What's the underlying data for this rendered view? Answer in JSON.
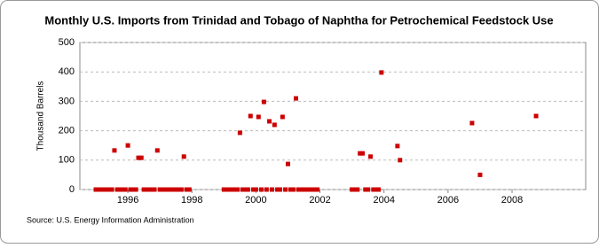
{
  "chart_data": {
    "type": "scatter",
    "title": "Monthly U.S. Imports from Trinidad and Tobago of Naphtha for Petrochemical Feedstock Use",
    "y_label": "Thousand Barrels",
    "source": "Source: U.S. Energy Information Administration",
    "color": "#cc0000",
    "grid": true,
    "xlim": [
      1994.5,
      2010.3
    ],
    "xticks": [
      1996,
      1998,
      2000,
      2002,
      2004,
      2006,
      2008
    ],
    "ylim": [
      0,
      500
    ],
    "yticks": [
      0,
      100,
      200,
      300,
      400,
      500
    ],
    "x": [
      1995.0,
      1995.08,
      1995.17,
      1995.25,
      1995.33,
      1995.42,
      1995.5,
      1995.58,
      1995.67,
      1995.75,
      1995.83,
      1995.92,
      1996.0,
      1996.08,
      1996.17,
      1996.25,
      1996.33,
      1996.42,
      1996.5,
      1996.58,
      1996.67,
      1996.75,
      1996.83,
      1996.92,
      1997.0,
      1997.08,
      1997.17,
      1997.25,
      1997.33,
      1997.42,
      1997.5,
      1997.58,
      1997.67,
      1997.75,
      1997.83,
      1997.92,
      1999.0,
      1999.08,
      1999.17,
      1999.25,
      1999.33,
      1999.42,
      1999.5,
      1999.58,
      1999.67,
      1999.75,
      1999.83,
      1999.92,
      2000.0,
      2000.08,
      2000.17,
      2000.25,
      2000.33,
      2000.42,
      2000.5,
      2000.58,
      2000.67,
      2000.75,
      2000.83,
      2000.92,
      2001.0,
      2001.08,
      2001.17,
      2001.25,
      2001.33,
      2001.42,
      2001.5,
      2001.58,
      2001.67,
      2001.75,
      2001.83,
      2001.92,
      2003.0,
      2003.08,
      2003.17,
      2003.25,
      2003.33,
      2003.42,
      2003.5,
      2003.58,
      2003.67,
      2003.75,
      2003.83,
      2003.92,
      2004.42,
      2004.5,
      2006.75,
      2007.0,
      2008.75
    ],
    "values": [
      0,
      0,
      0,
      0,
      0,
      0,
      0,
      133,
      0,
      0,
      0,
      0,
      150,
      0,
      0,
      0,
      108,
      108,
      0,
      0,
      0,
      0,
      0,
      133,
      0,
      0,
      0,
      0,
      0,
      0,
      0,
      0,
      0,
      112,
      0,
      0,
      0,
      0,
      0,
      0,
      0,
      0,
      193,
      0,
      0,
      0,
      250,
      0,
      0,
      247,
      0,
      298,
      0,
      232,
      0,
      220,
      0,
      0,
      247,
      0,
      87,
      0,
      0,
      310,
      0,
      0,
      0,
      0,
      0,
      0,
      0,
      0,
      0,
      0,
      0,
      123,
      123,
      0,
      0,
      112,
      0,
      0,
      0,
      398,
      148,
      100,
      226,
      50,
      250
    ]
  }
}
